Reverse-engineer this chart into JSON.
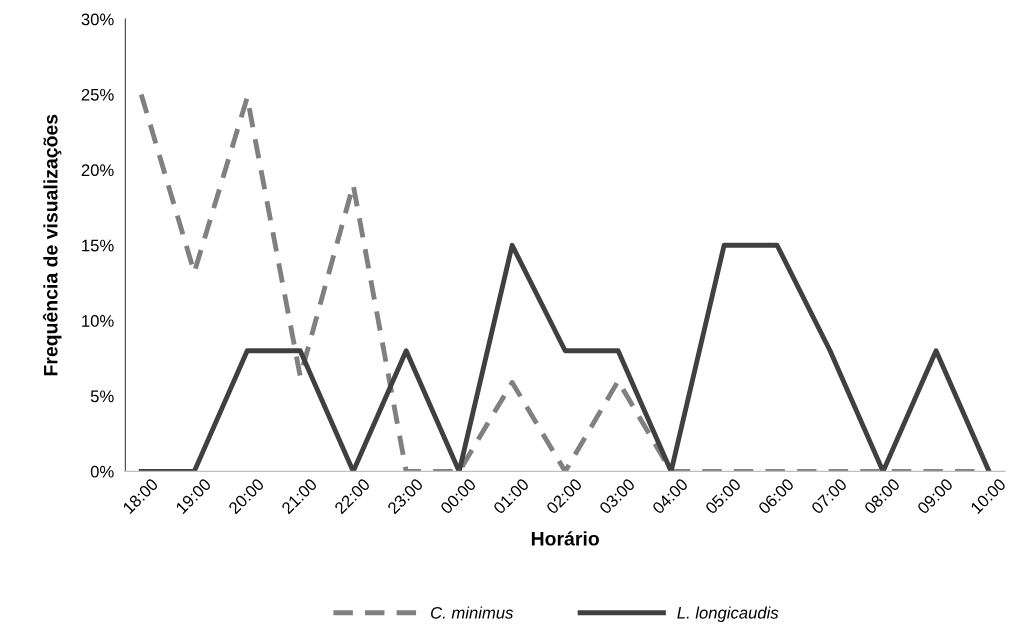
{
  "chart_data": {
    "type": "line",
    "xlabel": "Horário",
    "ylabel": "Frequência de visualizações",
    "categories": [
      "18:00",
      "19:00",
      "20:00",
      "21:00",
      "22:00",
      "23:00",
      "00:00",
      "01:00",
      "02:00",
      "03:00",
      "04:00",
      "05:00",
      "06:00",
      "07:00",
      "08:00",
      "09:00",
      "10:00"
    ],
    "series": [
      {
        "name": "C. minimus",
        "color": "#808080",
        "line_style": "dashed",
        "values": [
          25,
          13.2,
          24.8,
          6.3,
          19,
          0,
          0,
          5.9,
          0,
          6,
          0,
          0,
          0,
          0,
          0,
          0,
          0
        ]
      },
      {
        "name": "L. longicaudis",
        "color": "#404040",
        "line_style": "solid",
        "values": [
          0,
          0,
          8,
          8,
          0,
          8,
          0,
          15,
          8,
          8,
          0,
          15,
          15,
          8,
          0,
          8,
          0
        ]
      }
    ],
    "ylim": [
      0,
      30
    ],
    "yticks": [
      {
        "value": 0,
        "label": "0%"
      },
      {
        "value": 5,
        "label": "5%"
      },
      {
        "value": 10,
        "label": "10%"
      },
      {
        "value": 15,
        "label": "15%"
      },
      {
        "value": 20,
        "label": "20%"
      },
      {
        "value": 25,
        "label": "25%"
      },
      {
        "value": 30,
        "label": "30%"
      }
    ],
    "grid": false,
    "legend": "bottom",
    "marker": "none"
  }
}
